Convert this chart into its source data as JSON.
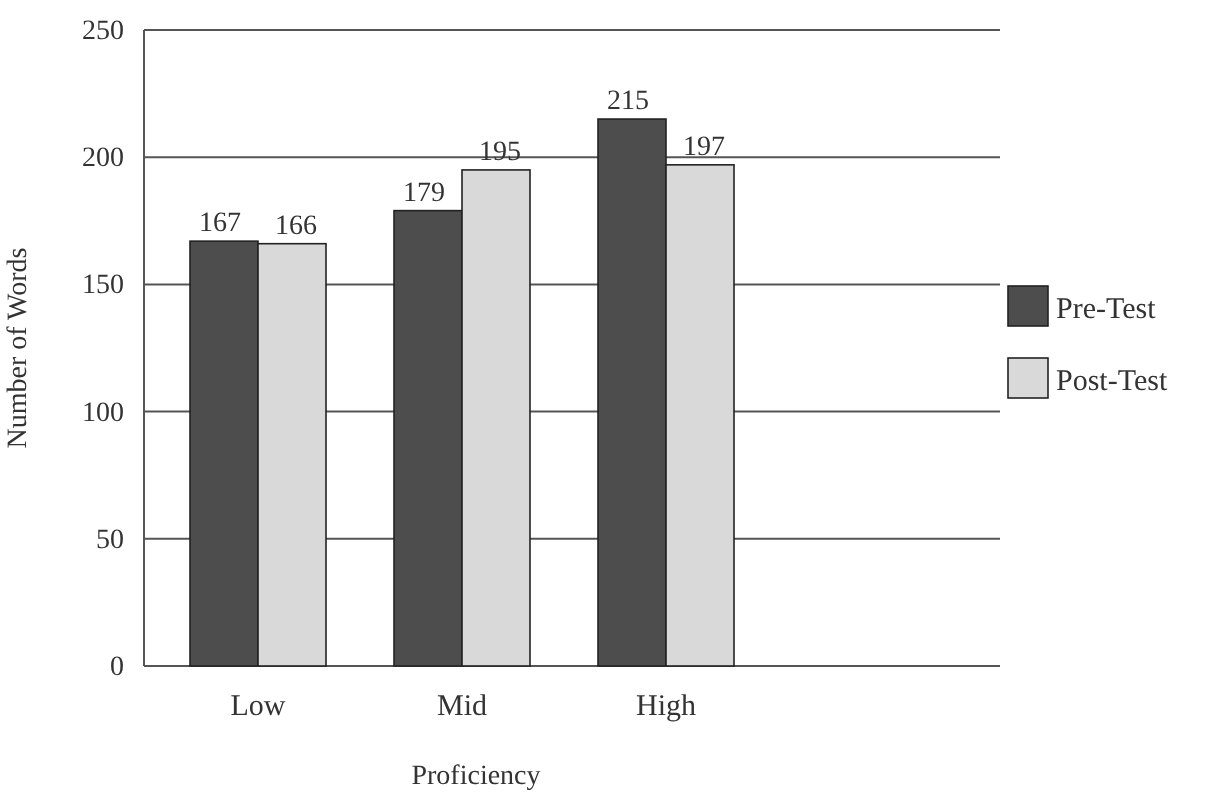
{
  "chart_data": {
    "type": "bar",
    "xlabel": "Proficiency",
    "ylabel": "Number of Words",
    "categories": [
      "Low",
      "Mid",
      "High"
    ],
    "series": [
      {
        "name": "Pre-Test",
        "color": "#4d4d4d",
        "values": [
          167,
          179,
          215
        ]
      },
      {
        "name": "Post-Test",
        "color": "#d9d9d9",
        "values": [
          166,
          195,
          197
        ]
      }
    ],
    "ylim": [
      0,
      250
    ],
    "yticks": [
      0,
      50,
      100,
      150,
      200,
      250
    ],
    "grid": "y",
    "legend": "right",
    "data_labels": true
  }
}
